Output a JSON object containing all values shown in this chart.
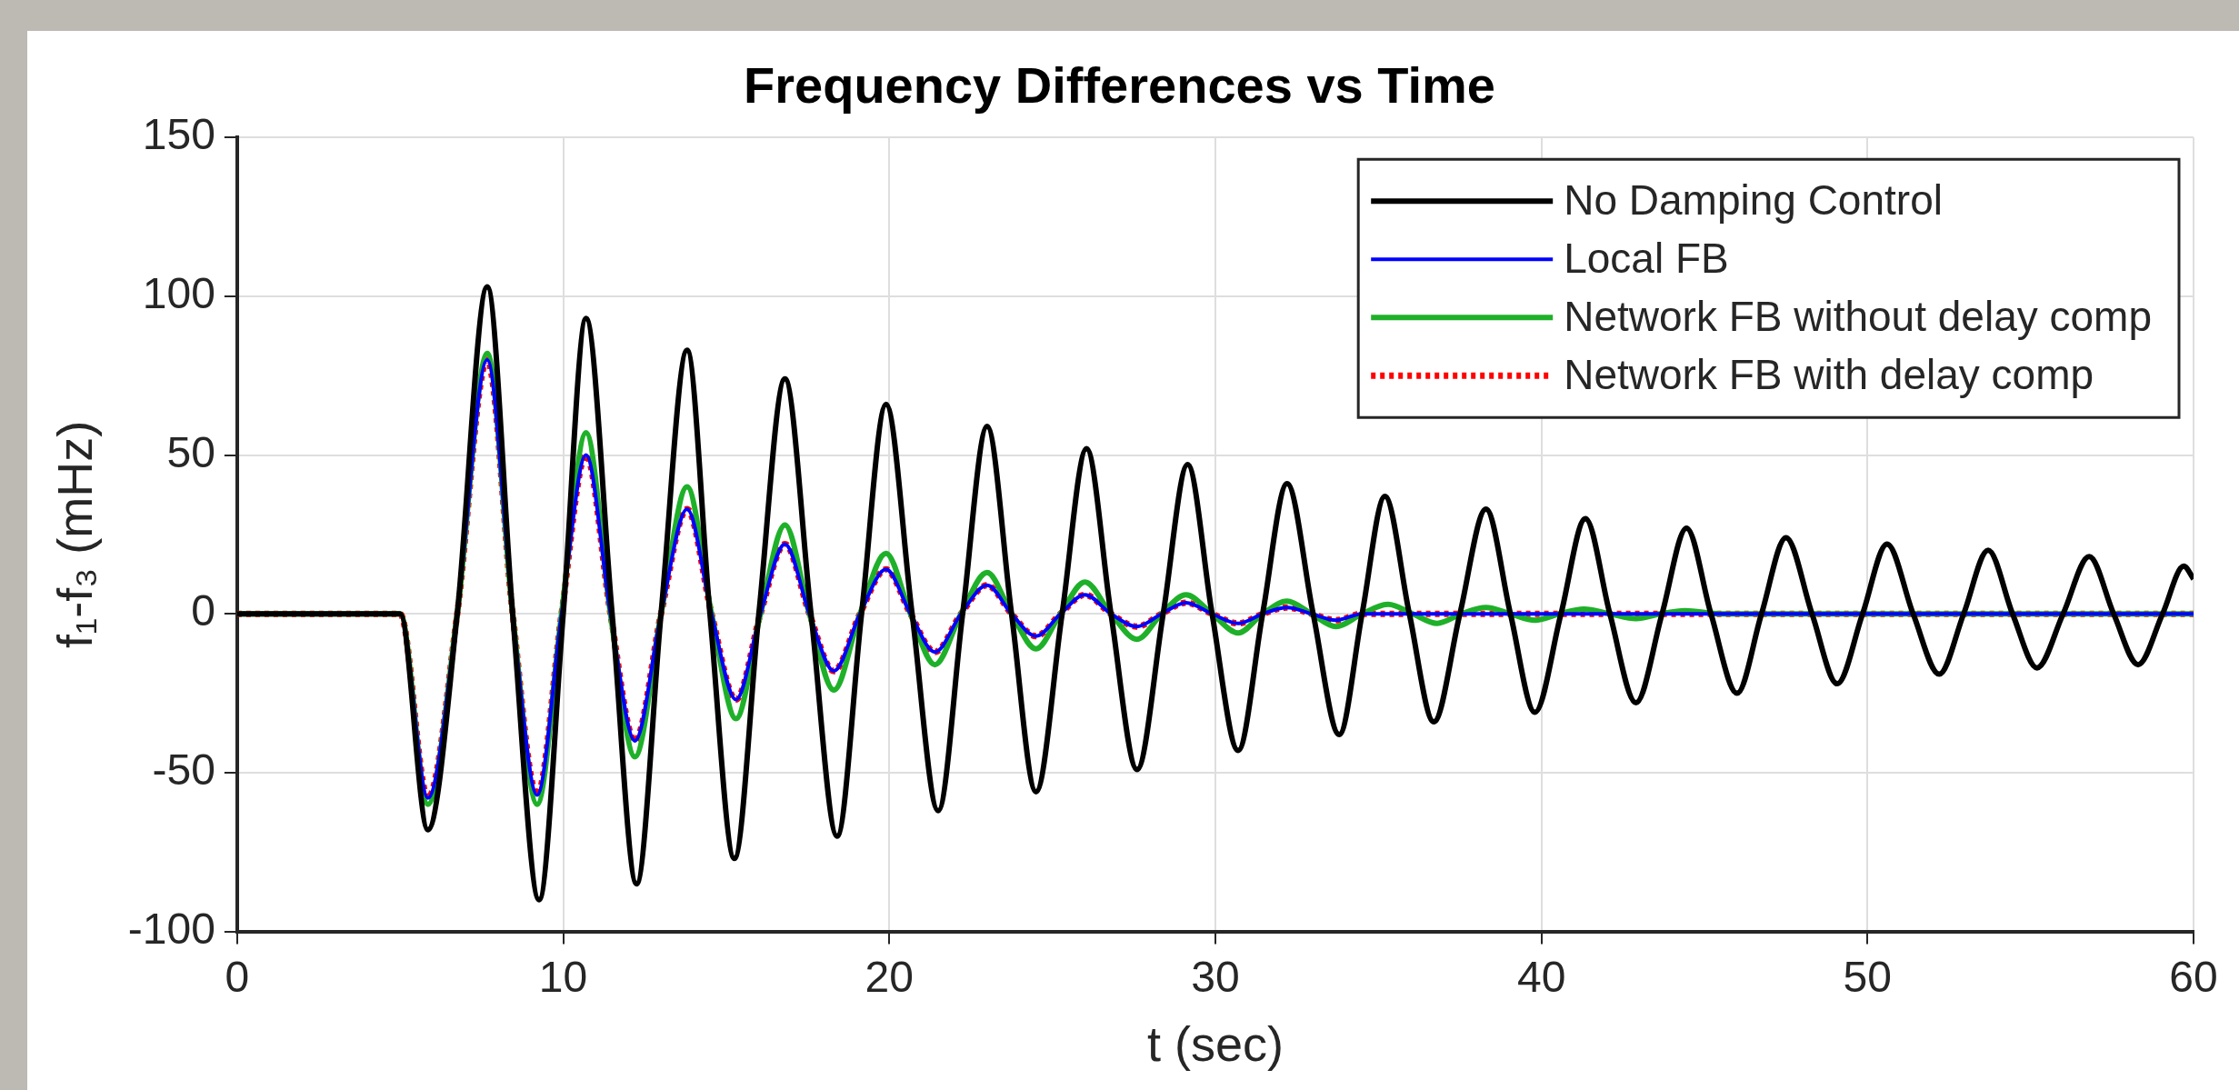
{
  "chart_data": {
    "type": "line",
    "title": "Frequency Differences vs Time",
    "xlabel": "t (sec)",
    "ylabel": "f₁-f₃ (mHz)",
    "xlim": [
      0,
      60
    ],
    "xticks": [
      0,
      10,
      20,
      30,
      40,
      50,
      60
    ],
    "ylim": [
      -100,
      150
    ],
    "yticks": [
      -100,
      -50,
      0,
      50,
      100,
      150
    ],
    "grid": true,
    "legend": "top right",
    "marker": "none",
    "series": [
      {
        "name": "No Damping Control",
        "color": "#000000",
        "line_style": "solid",
        "x": [
          0,
          5,
          5.85,
          6.75,
          7.67,
          8.45,
          9.26,
          10.0,
          10.7,
          11.5,
          12.25,
          13.0,
          13.8,
          14.5,
          15.25,
          16.0,
          16.8,
          17.6,
          18.4,
          19.15,
          19.9,
          20.7,
          21.5,
          22.25,
          23.0,
          23.75,
          24.5,
          25.3,
          26.05,
          26.8,
          27.6,
          28.4,
          29.15,
          29.9,
          30.7,
          31.45,
          32.2,
          33.0,
          33.8,
          34.5,
          35.2,
          35.95,
          36.7,
          37.5,
          38.3,
          39.05,
          39.8,
          40.6,
          41.35,
          42.1,
          42.9,
          43.7,
          44.45,
          45.2,
          46.0,
          46.75,
          47.5,
          48.3,
          49.07,
          49.85,
          50.6,
          51.4,
          52.2,
          52.95,
          53.7,
          54.45,
          55.2,
          56.0,
          56.8,
          57.55,
          58.3,
          59.05,
          59.7,
          60
        ],
        "values": [
          0,
          0,
          -68,
          0,
          103,
          0,
          -90,
          0,
          93,
          0,
          -85,
          0,
          83,
          0,
          -77,
          0,
          74,
          0,
          -70,
          0,
          66,
          0,
          -62,
          0,
          59,
          0,
          -56,
          0,
          52,
          0,
          -49,
          0,
          47,
          0,
          -43,
          0,
          41,
          0,
          -38,
          0,
          37,
          0,
          -34,
          0,
          33,
          0,
          -31,
          0,
          30,
          0,
          -28,
          0,
          27,
          0,
          -25,
          0,
          24,
          0,
          -22,
          0,
          22,
          0,
          -19,
          0,
          20,
          0,
          -17,
          0,
          18,
          0,
          -16,
          0,
          15,
          11
        ]
      },
      {
        "name": "Local FB",
        "color": "#0000ff",
        "line_style": "solid",
        "x": [
          0,
          5,
          5.85,
          6.75,
          7.67,
          8.45,
          9.2,
          9.95,
          10.7,
          11.45,
          12.2,
          13.0,
          13.8,
          14.55,
          15.3,
          16.05,
          16.8,
          17.55,
          18.3,
          19.1,
          19.9,
          20.65,
          21.4,
          22.2,
          23.0,
          23.75,
          24.5,
          25.25,
          26.0,
          26.8,
          27.6,
          28.35,
          29.1,
          29.9,
          30.7,
          31.45,
          32.2,
          32.95,
          33.7,
          34.5,
          60
        ],
        "values": [
          0,
          0,
          -58,
          0,
          80,
          0,
          -57,
          0,
          50,
          0,
          -40,
          0,
          33,
          0,
          -27,
          0,
          22,
          0,
          -18,
          0,
          14,
          0,
          -12,
          0,
          9,
          0,
          -7,
          0,
          6,
          0,
          -4,
          0,
          3.5,
          0,
          -3,
          0,
          2,
          0,
          -2,
          0,
          0
        ]
      },
      {
        "name": "Network FB without delay comp",
        "color": "#1fb02a",
        "line_style": "solid",
        "x": [
          0,
          5,
          5.85,
          6.75,
          7.67,
          8.45,
          9.2,
          9.95,
          10.7,
          11.45,
          12.2,
          13.0,
          13.8,
          14.55,
          15.3,
          16.05,
          16.8,
          17.55,
          18.3,
          19.1,
          19.9,
          20.65,
          21.4,
          22.2,
          23.0,
          23.75,
          24.5,
          25.25,
          26.0,
          26.8,
          27.6,
          28.35,
          29.1,
          29.9,
          30.7,
          31.45,
          32.2,
          32.95,
          33.7,
          34.5,
          35.3,
          36.05,
          36.8,
          37.55,
          38.3,
          39.05,
          39.8,
          40.55,
          41.3,
          42.1,
          42.9,
          43.65,
          44.4,
          45.5,
          60
        ],
        "values": [
          0,
          0,
          -60,
          0,
          82,
          0,
          -60,
          0,
          57,
          0,
          -45,
          0,
          40,
          0,
          -33,
          0,
          28,
          0,
          -24,
          0,
          19,
          0,
          -16,
          0,
          13,
          0,
          -11,
          0,
          10,
          0,
          -8,
          0,
          6,
          0,
          -6,
          0,
          4,
          0,
          -4,
          0,
          3,
          0,
          -3,
          0,
          2,
          0,
          -2,
          0,
          1.5,
          0,
          -1.5,
          0,
          1,
          0,
          0
        ]
      },
      {
        "name": "Network FB with delay comp",
        "color": "#ff0000",
        "line_style": "dotted",
        "x": [
          0,
          5,
          5.85,
          6.75,
          7.67,
          8.45,
          9.2,
          9.95,
          10.7,
          11.45,
          12.2,
          13.0,
          13.8,
          14.55,
          15.3,
          16.05,
          16.8,
          17.55,
          18.3,
          19.1,
          19.9,
          20.65,
          21.4,
          22.2,
          23.0,
          23.75,
          24.5,
          25.25,
          26.0,
          26.8,
          27.6,
          28.35,
          29.1,
          29.9,
          30.7,
          31.45,
          32.2,
          32.95,
          33.7,
          34.5,
          60
        ],
        "values": [
          0,
          0,
          -58,
          0,
          80,
          0,
          -57,
          0,
          50,
          0,
          -40,
          0,
          33,
          0,
          -27,
          0,
          22,
          0,
          -18,
          0,
          14,
          0,
          -12,
          0,
          9,
          0,
          -7,
          0,
          6,
          0,
          -4,
          0,
          3.5,
          0,
          -3,
          0,
          2,
          0,
          -2,
          0,
          0
        ]
      }
    ]
  }
}
